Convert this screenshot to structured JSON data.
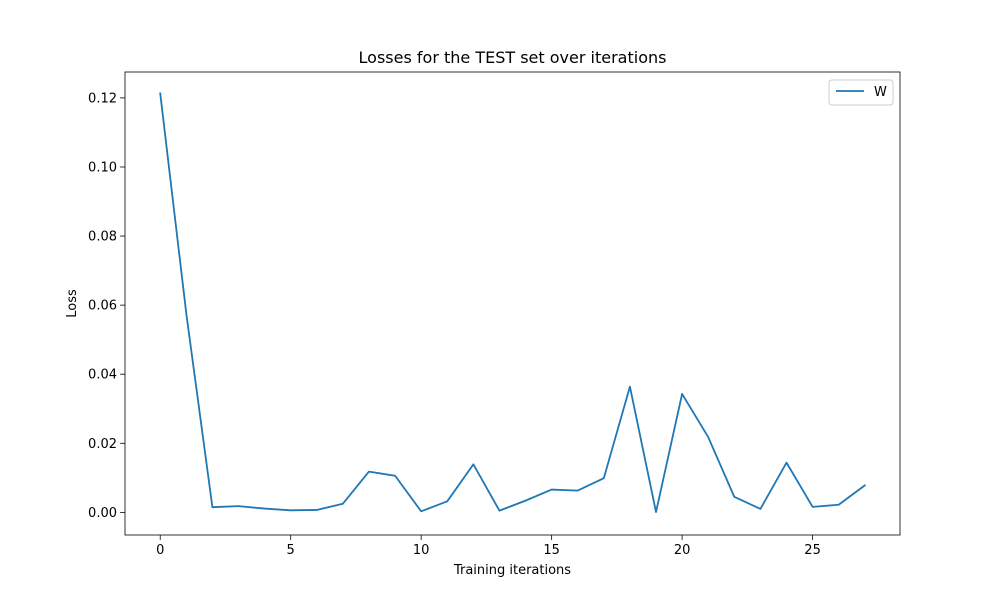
{
  "chart_data": {
    "type": "line",
    "title": "Losses for the TEST set over iterations",
    "xlabel": "Training iterations",
    "ylabel": "Loss",
    "xlim": [
      -1.35,
      28.35
    ],
    "ylim": [
      -0.00655,
      0.1275
    ],
    "xticks": [
      0,
      5,
      10,
      15,
      20,
      25
    ],
    "xtick_labels": [
      "0",
      "5",
      "10",
      "15",
      "20",
      "25"
    ],
    "yticks": [
      0.0,
      0.02,
      0.04,
      0.06,
      0.08,
      0.1,
      0.12
    ],
    "ytick_labels": [
      "0.00",
      "0.02",
      "0.04",
      "0.06",
      "0.08",
      "0.10",
      "0.12"
    ],
    "grid": false,
    "legend": "top-right",
    "x": [
      0,
      1,
      2,
      3,
      4,
      5,
      6,
      7,
      8,
      9,
      10,
      11,
      12,
      13,
      14,
      15,
      16,
      17,
      18,
      19,
      20,
      21,
      22,
      23,
      24,
      25,
      26,
      27
    ],
    "series": [
      {
        "name": "W",
        "color": "#1f77b4",
        "values": [
          0.1213,
          0.0575,
          0.0015,
          0.0018,
          0.0011,
          0.0006,
          0.0007,
          0.0025,
          0.0118,
          0.0106,
          0.0003,
          0.0032,
          0.0139,
          0.0005,
          0.0034,
          0.0066,
          0.0063,
          0.0099,
          0.0364,
          0.0001,
          0.0343,
          0.0218,
          0.0045,
          0.001,
          0.0144,
          0.0016,
          0.0022,
          0.0078
        ]
      }
    ]
  }
}
